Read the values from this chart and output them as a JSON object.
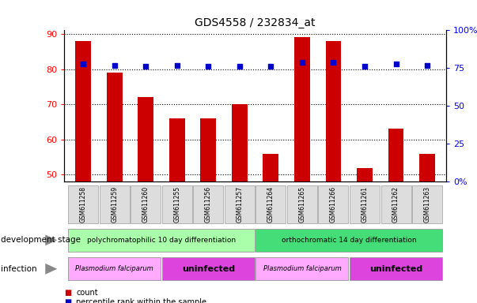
{
  "title": "GDS4558 / 232834_at",
  "samples": [
    "GSM611258",
    "GSM611259",
    "GSM611260",
    "GSM611255",
    "GSM611256",
    "GSM611257",
    "GSM611264",
    "GSM611265",
    "GSM611266",
    "GSM611261",
    "GSM611262",
    "GSM611263"
  ],
  "counts": [
    88,
    79,
    72,
    66,
    66,
    70,
    56,
    89,
    88,
    52,
    63,
    56
  ],
  "percentile_ranks": [
    78,
    77,
    76,
    77,
    76,
    76,
    76,
    79,
    79,
    76,
    78,
    77
  ],
  "ylim_left": [
    48,
    91
  ],
  "yticks_left": [
    50,
    60,
    70,
    80,
    90
  ],
  "ylim_right": [
    0,
    100
  ],
  "yticks_right": [
    0,
    25,
    50,
    75,
    100
  ],
  "yticklabels_right": [
    "0%",
    "25",
    "50",
    "75",
    "100%"
  ],
  "bar_color": "#cc0000",
  "dot_color": "#0000cc",
  "bar_width": 0.5,
  "dev_stage_groups": [
    {
      "label": "polychromatophilic 10 day differentiation",
      "start": 0,
      "end": 5,
      "color": "#aaffaa"
    },
    {
      "label": "orthochromatic 14 day differentiation",
      "start": 6,
      "end": 11,
      "color": "#44dd77"
    }
  ],
  "infection_groups": [
    {
      "label": "Plasmodium falciparum",
      "start": 0,
      "end": 2,
      "color": "#ffaaff"
    },
    {
      "label": "uninfected",
      "start": 3,
      "end": 5,
      "color": "#dd44dd"
    },
    {
      "label": "Plasmodium falciparum",
      "start": 6,
      "end": 8,
      "color": "#ffaaff"
    },
    {
      "label": "uninfected",
      "start": 9,
      "end": 11,
      "color": "#dd44dd"
    }
  ],
  "legend_count_color": "#cc0000",
  "legend_pct_color": "#0000cc"
}
